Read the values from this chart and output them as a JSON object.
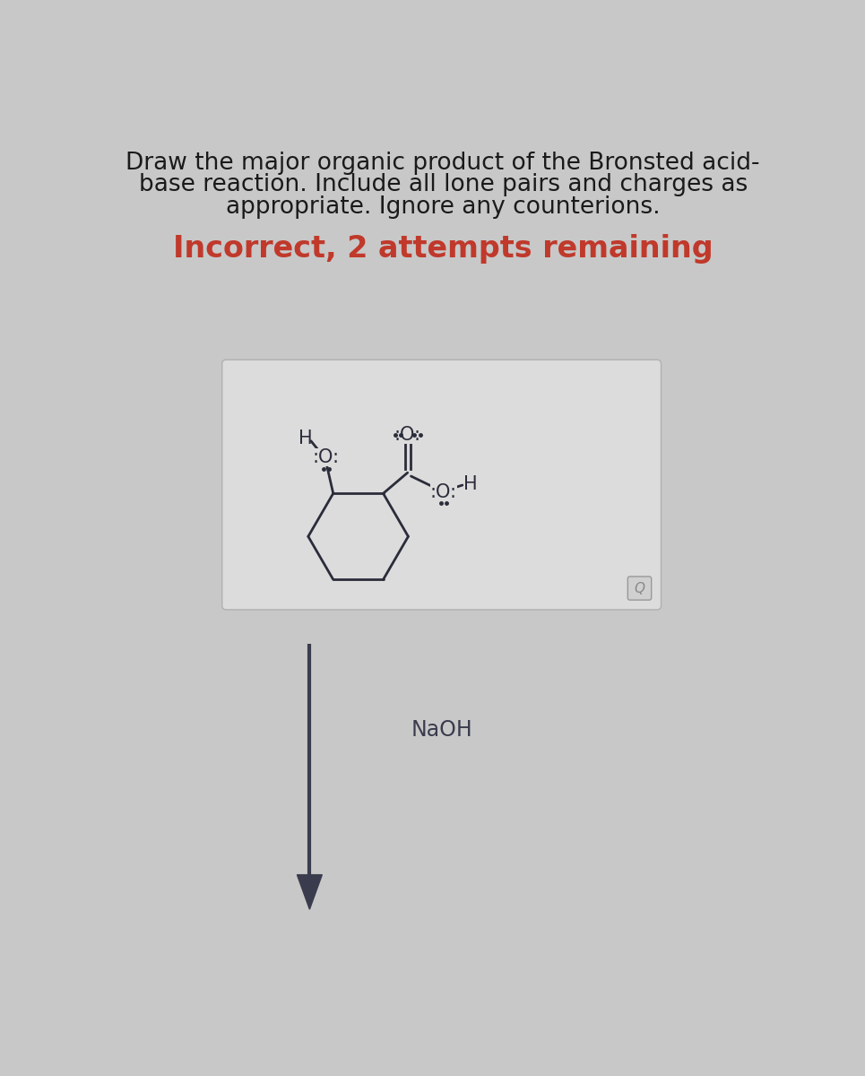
{
  "bg_color": "#c8c8c8",
  "box_bg": "#dcdcdc",
  "box_edge": "#b0b0b0",
  "title_color": "#1a1a1a",
  "incorrect_color": "#c0392b",
  "arrow_color": "#3a3c4e",
  "structure_color": "#2a2c3a",
  "font_size_title": 19,
  "font_size_incorrect": 24,
  "font_size_reagent": 17,
  "title_line1": "Draw the major organic product of the Bronsted acid-",
  "title_line2": "base reaction. Include all lone pairs and charges as",
  "title_line3": "appropriate. Ignore any counterions.",
  "incorrect_text": "Incorrect, 2 attempts remaining",
  "reagent_text": "NaOH"
}
